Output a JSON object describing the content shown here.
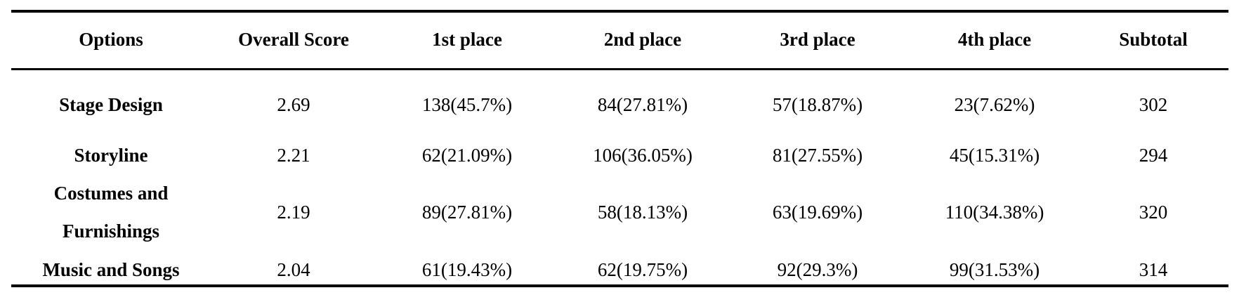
{
  "table": {
    "header": [
      "Options",
      "Overall Score",
      "1st place",
      "2nd place",
      "3rd place",
      "4th place",
      "Subtotal"
    ],
    "rows": [
      [
        "Stage Design",
        "2.69",
        "138(45.7%)",
        "84(27.81%)",
        "57(18.87%)",
        "23(7.62%)",
        "302"
      ],
      [
        "Storyline",
        "2.21",
        "62(21.09%)",
        "106(36.05%)",
        "81(27.55%)",
        "45(15.31%)",
        "294"
      ],
      [
        "Costumes and Furnishings",
        "2.19",
        "89(27.81%)",
        "58(18.13%)",
        "63(19.69%)",
        "110(34.38%)",
        "320"
      ],
      [
        "Music and Songs",
        "2.04",
        "61(19.43%)",
        "62(19.75%)",
        "92(29.3%)",
        "99(31.53%)",
        "314"
      ]
    ]
  }
}
